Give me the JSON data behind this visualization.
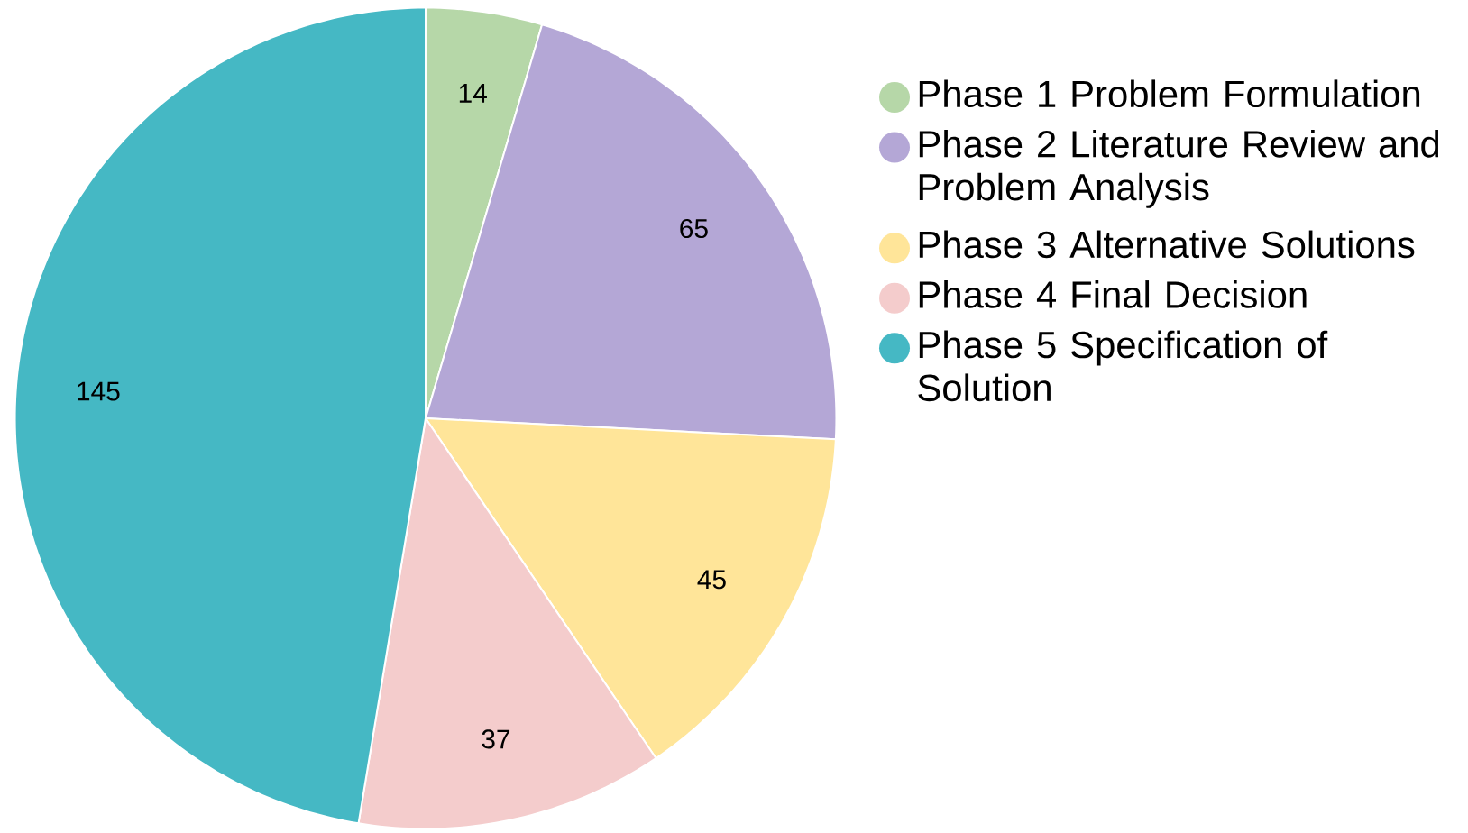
{
  "chart_data": {
    "type": "pie",
    "categories": [
      "Phase 1 Problem Formulation",
      "Phase 2 Literature Review and Problem Analysis",
      "Phase 3 Alternative Solutions",
      "Phase 4 Final Decision",
      "Phase 5 Specification of Solution"
    ],
    "values": [
      14,
      65,
      45,
      37,
      145
    ],
    "colors": [
      "#b6d7a8",
      "#b4a7d6",
      "#ffe599",
      "#f4cccc",
      "#45b8c4"
    ],
    "data_labels": true,
    "legend": "right"
  }
}
